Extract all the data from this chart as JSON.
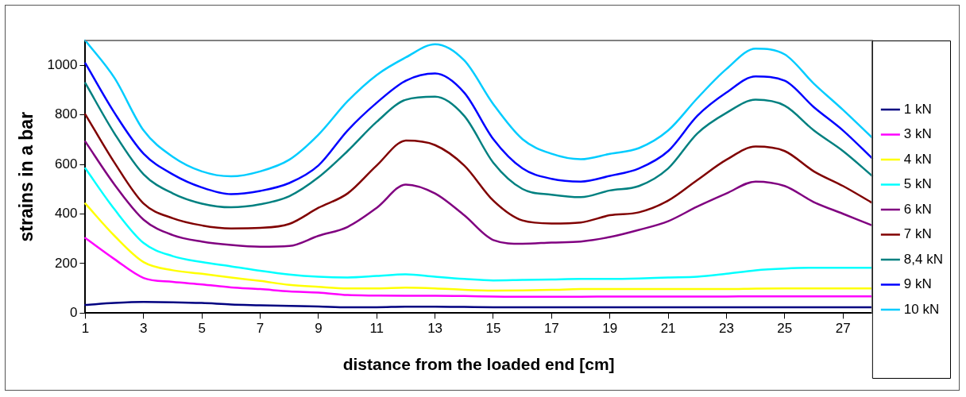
{
  "chart_data": {
    "type": "line",
    "xlabel": "distance from the loaded end [cm]",
    "ylabel": "strains in a bar",
    "x": [
      1,
      2,
      3,
      4,
      5,
      6,
      7,
      8,
      9,
      10,
      11,
      12,
      13,
      14,
      15,
      16,
      17,
      18,
      19,
      20,
      21,
      22,
      23,
      24,
      25,
      26,
      27,
      28
    ],
    "xlim": [
      1,
      28
    ],
    "xticks": [
      1,
      3,
      5,
      7,
      9,
      11,
      13,
      15,
      17,
      19,
      21,
      23,
      25,
      27
    ],
    "ylim": [
      0,
      1100
    ],
    "yticks": [
      0,
      200,
      400,
      600,
      800,
      1000
    ],
    "grid": false,
    "legend": "right",
    "marker": "none",
    "line_style": "solid",
    "series": [
      {
        "name": "1 kN",
        "color": "#000080",
        "values": [
          33,
          41,
          45,
          44,
          41,
          35,
          32,
          29,
          27,
          24,
          24,
          26,
          26,
          25,
          24,
          24,
          24,
          24,
          24,
          24,
          24,
          24,
          24,
          24,
          24,
          24,
          24,
          24
        ]
      },
      {
        "name": "3 kN",
        "color": "#ff00ff",
        "values": [
          303,
          218,
          142,
          126,
          116,
          104,
          97,
          88,
          83,
          73,
          71,
          70,
          70,
          69,
          67,
          66,
          66,
          66,
          67,
          67,
          67,
          67,
          67,
          68,
          68,
          68,
          68,
          68
        ]
      },
      {
        "name": "4 kN",
        "color": "#ffff00",
        "values": [
          442,
          312,
          206,
          173,
          159,
          144,
          130,
          114,
          106,
          100,
          100,
          103,
          100,
          94,
          91,
          92,
          94,
          97,
          97,
          97,
          97,
          97,
          97,
          99,
          100,
          100,
          100,
          100
        ]
      },
      {
        "name": "5 kN",
        "color": "#00ffff",
        "values": [
          584,
          419,
          283,
          230,
          206,
          189,
          171,
          156,
          147,
          144,
          150,
          157,
          147,
          138,
          132,
          134,
          136,
          138,
          138,
          140,
          144,
          147,
          159,
          173,
          180,
          183,
          183,
          183
        ]
      },
      {
        "name": "6 kN",
        "color": "#800080",
        "values": [
          692,
          519,
          377,
          315,
          289,
          275,
          268,
          271,
          312,
          348,
          425,
          519,
          483,
          395,
          295,
          280,
          285,
          289,
          307,
          336,
          371,
          430,
          483,
          531,
          513,
          448,
          401,
          354
        ]
      },
      {
        "name": "7 kN",
        "color": "#800000",
        "values": [
          802,
          607,
          442,
          383,
          354,
          342,
          344,
          360,
          425,
          483,
          596,
          696,
          678,
          596,
          454,
          374,
          362,
          366,
          395,
          407,
          454,
          537,
          619,
          672,
          654,
          572,
          513,
          445
        ]
      },
      {
        "name": "8,4 kN",
        "color": "#008080",
        "values": [
          928,
          725,
          560,
          483,
          442,
          427,
          439,
          472,
          548,
          654,
          772,
          861,
          873,
          796,
          607,
          501,
          478,
          468,
          495,
          513,
          584,
          725,
          808,
          861,
          837,
          737,
          654,
          554
        ]
      },
      {
        "name": "9 kN",
        "color": "#0000ff",
        "values": [
          1008,
          808,
          643,
          560,
          507,
          480,
          493,
          525,
          596,
          737,
          849,
          938,
          967,
          890,
          702,
          584,
          542,
          531,
          554,
          584,
          654,
          796,
          890,
          955,
          938,
          831,
          737,
          625
        ]
      },
      {
        "name": "10 kN",
        "color": "#00ccff",
        "values": [
          1100,
          949,
          737,
          631,
          572,
          552,
          572,
          619,
          720,
          855,
          961,
          1032,
          1085,
          1020,
          843,
          702,
          643,
          621,
          643,
          666,
          737,
          867,
          985,
          1067,
          1044,
          926,
          820,
          708
        ]
      }
    ]
  }
}
